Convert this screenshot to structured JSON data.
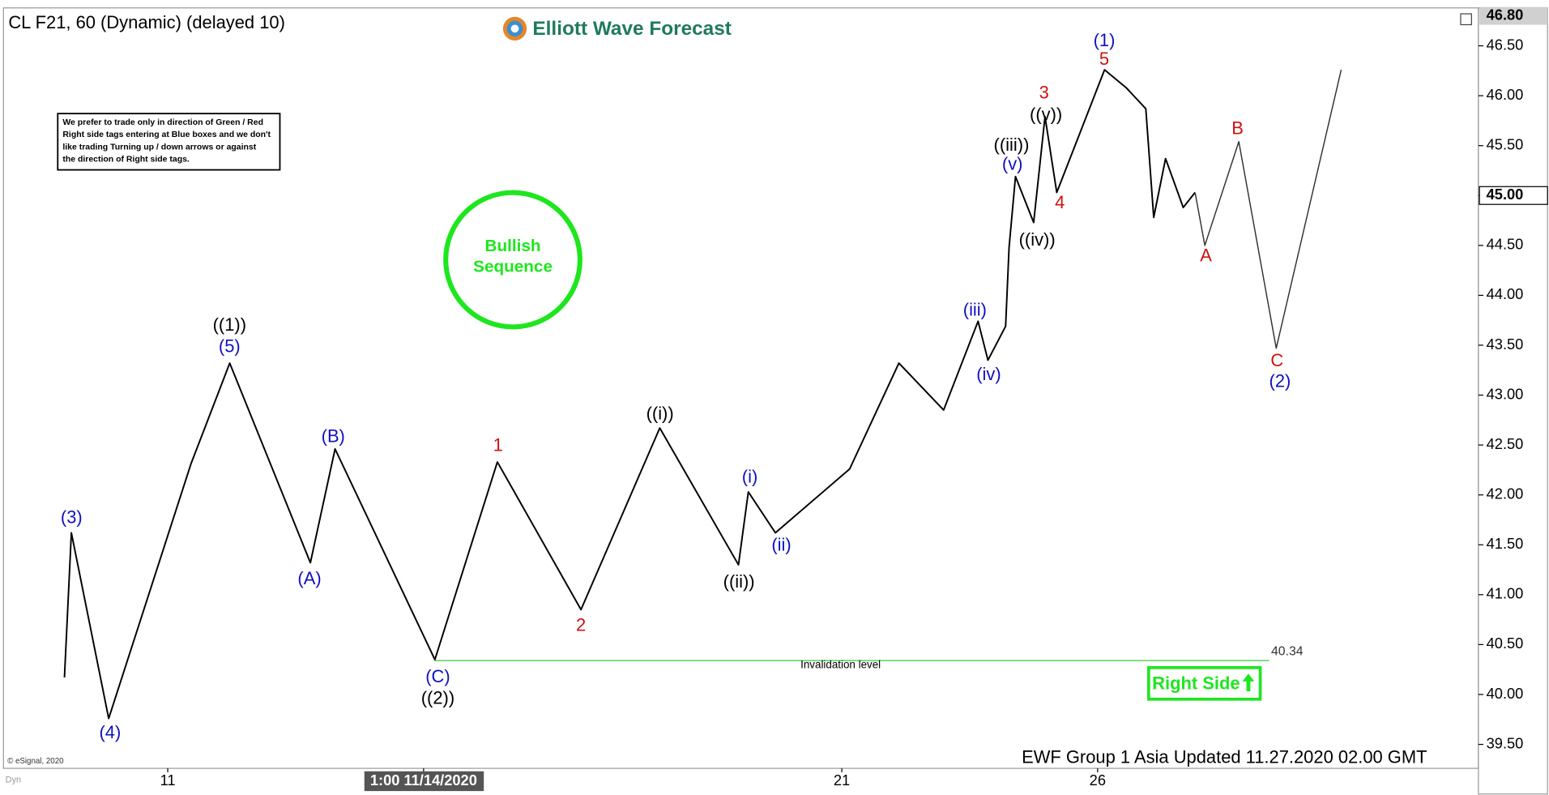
{
  "chart_data": {
    "type": "line",
    "title": "CL F21, 60 (Dynamic) (delayed 10)",
    "logo": "Elliott Wave Forecast",
    "note": [
      "We prefer to trade only in direction of Green / Red",
      "Right side tags entering at Blue boxes and we don't",
      "like trading Turning up / down arrows or against",
      "the direction of Right side tags."
    ],
    "badge": [
      "Bullish",
      "Sequence"
    ],
    "right_side": "Right Side",
    "footer": "EWF Group 1 Asia Updated 11.27.2020 02.00 GMT",
    "copyright": "© eSignal, 2020",
    "corner": "Dyn",
    "xlim": [
      0,
      300
    ],
    "xticks": [
      {
        "value": 34,
        "label": "11"
      },
      {
        "value": 86,
        "label": "1:00 11/14/2020"
      },
      {
        "value": 171,
        "label": "21"
      },
      {
        "value": 223,
        "label": "26"
      }
    ],
    "ylim": [
      39.26,
      46.88
    ],
    "yticks": [
      {
        "value": 39.5,
        "label": "39.50"
      },
      {
        "value": 40,
        "label": "40.00"
      },
      {
        "value": 40.5,
        "label": "40.50"
      },
      {
        "value": 41,
        "label": "41.00"
      },
      {
        "value": 41.5,
        "label": "41.50"
      },
      {
        "value": 42,
        "label": "42.00"
      },
      {
        "value": 42.5,
        "label": "42.50"
      },
      {
        "value": 43,
        "label": "43.00"
      },
      {
        "value": 43.5,
        "label": "43.50"
      },
      {
        "value": 44,
        "label": "44.00"
      },
      {
        "value": 44.5,
        "label": "44.50"
      },
      {
        "value": 45,
        "label": "45.00"
      },
      {
        "value": 45.5,
        "label": "45.50"
      },
      {
        "value": 46,
        "label": "46.00"
      },
      {
        "value": 46.5,
        "label": "46.50"
      }
    ],
    "top_price": {
      "value": 46.8,
      "label": "46.80"
    },
    "last_price": {
      "value": 45,
      "label": "45.00"
    },
    "invalidation": {
      "value": 40.34,
      "label": "Invalidation level"
    },
    "series": [
      {
        "name": "CL F21",
        "color": "#000000",
        "x": [
          13,
          14.4,
          22,
          38.7,
          46.6,
          63,
          68,
          88.3,
          101,
          118,
          134,
          150,
          152,
          157.5,
          172.6,
          182.6,
          191.7,
          198.7,
          200.7,
          204.3,
          205,
          206.3,
          210,
          212.3,
          214.7,
          224.4,
          228.8,
          232.8,
          234.4,
          236.8,
          240.4,
          242.8
        ],
        "values": [
          40.17,
          41.62,
          39.76,
          42.31,
          43.32,
          41.32,
          42.46,
          40.35,
          42.33,
          40.85,
          42.67,
          41.3,
          42.03,
          41.62,
          42.26,
          43.32,
          42.85,
          43.74,
          43.35,
          43.69,
          44.48,
          45.19,
          44.73,
          45.79,
          45.03,
          46.26,
          46.08,
          45.87,
          44.78,
          45.37,
          44.88,
          45.03
        ]
      },
      {
        "name": "Projection",
        "color": "#333333",
        "x": [
          242.8,
          244.8,
          251.7,
          259.3,
          272.5
        ],
        "values": [
          45.03,
          44.5,
          45.54,
          43.47,
          46.26
        ]
      }
    ],
    "annotations": [
      {
        "text": "(3)",
        "color": "#1010c0"
      },
      {
        "text": "(4)",
        "color": "#1010c0"
      },
      {
        "text": "((1))",
        "color": "#000000"
      },
      {
        "text": "(5)",
        "color": "#1010c0"
      },
      {
        "text": "(A)",
        "color": "#1010c0"
      },
      {
        "text": "(B)",
        "color": "#1010c0"
      },
      {
        "text": "(C)",
        "color": "#1010c0"
      },
      {
        "text": "((2))",
        "color": "#000000"
      },
      {
        "text": "1",
        "color": "#d01010"
      },
      {
        "text": "2",
        "color": "#d01010"
      },
      {
        "text": "((i))",
        "color": "#000000"
      },
      {
        "text": "((ii))",
        "color": "#000000"
      },
      {
        "text": "(i)",
        "color": "#1010c0"
      },
      {
        "text": "(ii)",
        "color": "#1010c0"
      },
      {
        "text": "(iii)",
        "color": "#1010c0"
      },
      {
        "text": "(iv)",
        "color": "#1010c0"
      },
      {
        "text": "(v)",
        "color": "#1010c0"
      },
      {
        "text": "((iii))",
        "color": "#000000"
      },
      {
        "text": "((iv))",
        "color": "#000000"
      },
      {
        "text": "((v))",
        "color": "#000000"
      },
      {
        "text": "3",
        "color": "#d01010"
      },
      {
        "text": "4",
        "color": "#d01010"
      },
      {
        "text": "5",
        "color": "#d01010"
      },
      {
        "text": "(1)",
        "color": "#1010c0"
      },
      {
        "text": "A",
        "color": "#d01010"
      },
      {
        "text": "B",
        "color": "#d01010"
      },
      {
        "text": "C",
        "color": "#d01010"
      },
      {
        "text": "(2)",
        "color": "#1010c0"
      }
    ]
  }
}
